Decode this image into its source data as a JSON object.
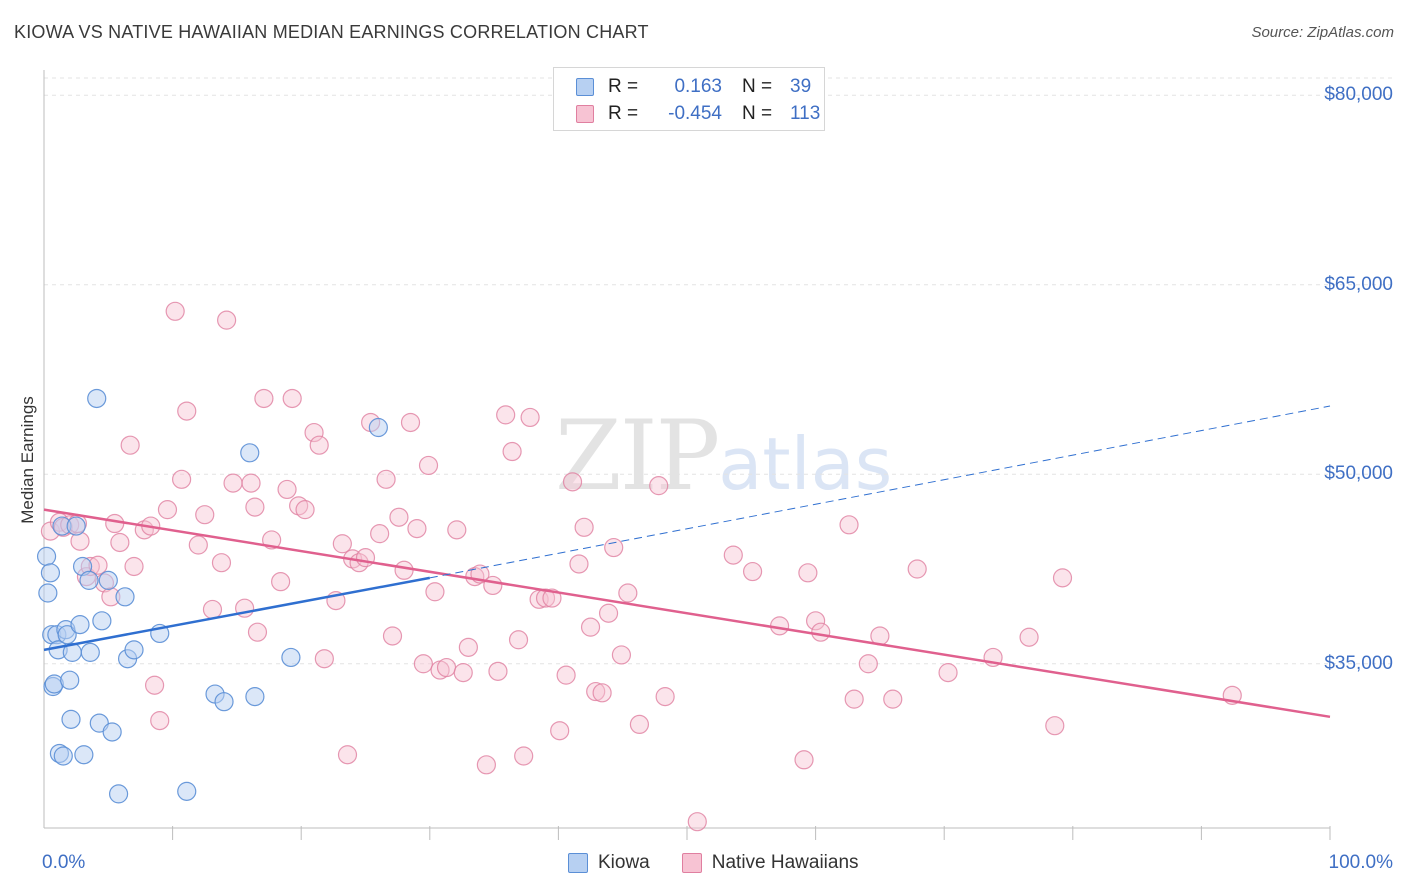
{
  "header": {
    "title": "KIOWA VS NATIVE HAWAIIAN MEDIAN EARNINGS CORRELATION CHART",
    "source": "Source: ZipAtlas.com"
  },
  "watermark": {
    "part1": "ZIP",
    "part2": "atlas"
  },
  "legend": {
    "rows": [
      {
        "r_label": "R =",
        "r_value": "0.163",
        "n_label": "N =",
        "n_value": "39"
      },
      {
        "r_label": "R =",
        "r_value": "-0.454",
        "n_label": "N =",
        "n_value": "113"
      }
    ]
  },
  "colors": {
    "kiowa_fill": "#b7d0f2",
    "kiowa_stroke": "#5b8fd6",
    "kiowa_line": "#2f6fd0",
    "hawaiian_fill": "#f7c3d3",
    "hawaiian_stroke": "#e07fa0",
    "hawaiian_line": "#e0608e",
    "grid": "#e3e3e3",
    "tick_text": "#3f6fc4"
  },
  "chart_data": {
    "type": "scatter",
    "title": "KIOWA VS NATIVE HAWAIIAN MEDIAN EARNINGS CORRELATION CHART",
    "xlabel": "",
    "ylabel": "Median Earnings",
    "xlim": [
      0,
      100
    ],
    "ylim": [
      22000,
      82000
    ],
    "x_tick_labels": [
      "0.0%",
      "100.0%"
    ],
    "y_ticks": [
      {
        "value": 80000,
        "label": "$80,000"
      },
      {
        "value": 65000,
        "label": "$65,000"
      },
      {
        "value": 50000,
        "label": "$50,000"
      },
      {
        "value": 35000,
        "label": "$35,000"
      }
    ],
    "grid": true,
    "legend_position": "top-center",
    "series": [
      {
        "name": "Kiowa",
        "r": 0.163,
        "n": 39,
        "trend": {
          "x0": 0,
          "y0": 36100,
          "x1": 30,
          "y1": 41800,
          "dashed_to_x": 100,
          "dashed_to_y": 55400
        },
        "points": [
          [
            0.2,
            43500
          ],
          [
            0.3,
            40600
          ],
          [
            0.5,
            42200
          ],
          [
            0.6,
            37300
          ],
          [
            0.7,
            33200
          ],
          [
            0.8,
            33400
          ],
          [
            1.0,
            37300
          ],
          [
            1.1,
            36100
          ],
          [
            1.2,
            27900
          ],
          [
            1.4,
            45900
          ],
          [
            1.5,
            27700
          ],
          [
            1.7,
            37700
          ],
          [
            1.8,
            37300
          ],
          [
            2.0,
            33700
          ],
          [
            2.1,
            30600
          ],
          [
            2.2,
            35900
          ],
          [
            2.5,
            45900
          ],
          [
            2.8,
            38100
          ],
          [
            3.0,
            42700
          ],
          [
            3.1,
            27800
          ],
          [
            3.5,
            41600
          ],
          [
            3.6,
            35900
          ],
          [
            4.1,
            56000
          ],
          [
            4.3,
            30300
          ],
          [
            4.5,
            38400
          ],
          [
            5.0,
            41600
          ],
          [
            5.3,
            29600
          ],
          [
            5.8,
            24700
          ],
          [
            6.3,
            40300
          ],
          [
            6.5,
            35400
          ],
          [
            7.0,
            36100
          ],
          [
            9.0,
            37400
          ],
          [
            11.1,
            24900
          ],
          [
            13.3,
            32600
          ],
          [
            14.0,
            32000
          ],
          [
            16.0,
            51700
          ],
          [
            16.4,
            32400
          ],
          [
            19.2,
            35500
          ],
          [
            26.0,
            53700
          ]
        ]
      },
      {
        "name": "Native Hawaiians",
        "r": -0.454,
        "n": 113,
        "trend": {
          "x0": 0,
          "y0": 47200,
          "x1": 100,
          "y1": 30800
        },
        "points": [
          [
            0.5,
            45500
          ],
          [
            1.2,
            46200
          ],
          [
            1.5,
            45800
          ],
          [
            2.0,
            46000
          ],
          [
            2.6,
            46100
          ],
          [
            2.8,
            44700
          ],
          [
            3.3,
            41900
          ],
          [
            3.6,
            42700
          ],
          [
            4.2,
            42800
          ],
          [
            4.7,
            41400
          ],
          [
            5.2,
            40300
          ],
          [
            5.5,
            46100
          ],
          [
            5.9,
            44600
          ],
          [
            6.7,
            52300
          ],
          [
            7.0,
            42700
          ],
          [
            7.8,
            45600
          ],
          [
            8.3,
            45900
          ],
          [
            8.6,
            33300
          ],
          [
            9.0,
            30500
          ],
          [
            9.6,
            47200
          ],
          [
            10.2,
            62900
          ],
          [
            10.7,
            49600
          ],
          [
            11.1,
            55000
          ],
          [
            12.0,
            44400
          ],
          [
            12.5,
            46800
          ],
          [
            13.1,
            39300
          ],
          [
            13.8,
            43000
          ],
          [
            14.2,
            62200
          ],
          [
            14.7,
            49300
          ],
          [
            15.6,
            39400
          ],
          [
            16.1,
            49300
          ],
          [
            16.4,
            47400
          ],
          [
            16.6,
            37500
          ],
          [
            17.1,
            56000
          ],
          [
            17.7,
            44800
          ],
          [
            18.4,
            41500
          ],
          [
            18.9,
            48800
          ],
          [
            19.3,
            56000
          ],
          [
            19.8,
            47500
          ],
          [
            20.3,
            47200
          ],
          [
            21.0,
            53300
          ],
          [
            21.4,
            52300
          ],
          [
            21.8,
            35400
          ],
          [
            22.7,
            40000
          ],
          [
            23.2,
            44500
          ],
          [
            23.6,
            27800
          ],
          [
            24.0,
            43300
          ],
          [
            24.5,
            43000
          ],
          [
            25.0,
            43400
          ],
          [
            25.4,
            54100
          ],
          [
            26.1,
            45300
          ],
          [
            26.6,
            49600
          ],
          [
            27.1,
            37200
          ],
          [
            27.6,
            46600
          ],
          [
            28.0,
            42400
          ],
          [
            28.5,
            54100
          ],
          [
            29.0,
            45700
          ],
          [
            29.5,
            35000
          ],
          [
            29.9,
            50700
          ],
          [
            30.4,
            40700
          ],
          [
            30.8,
            34500
          ],
          [
            31.3,
            34700
          ],
          [
            32.1,
            45600
          ],
          [
            32.6,
            34300
          ],
          [
            33.0,
            36300
          ],
          [
            33.5,
            41900
          ],
          [
            33.9,
            42100
          ],
          [
            34.4,
            27000
          ],
          [
            34.9,
            41200
          ],
          [
            35.3,
            34400
          ],
          [
            35.9,
            54700
          ],
          [
            36.4,
            51800
          ],
          [
            36.9,
            36900
          ],
          [
            37.3,
            27700
          ],
          [
            37.8,
            54500
          ],
          [
            38.5,
            40100
          ],
          [
            39.0,
            40200
          ],
          [
            39.5,
            40200
          ],
          [
            40.1,
            29700
          ],
          [
            40.6,
            34100
          ],
          [
            41.1,
            49400
          ],
          [
            41.6,
            42900
          ],
          [
            42.0,
            45800
          ],
          [
            42.5,
            37900
          ],
          [
            42.9,
            32800
          ],
          [
            43.4,
            32700
          ],
          [
            43.9,
            39000
          ],
          [
            44.3,
            44200
          ],
          [
            44.9,
            35700
          ],
          [
            45.4,
            40600
          ],
          [
            46.3,
            30200
          ],
          [
            47.8,
            49100
          ],
          [
            48.3,
            32400
          ],
          [
            50.8,
            22500
          ],
          [
            53.6,
            43600
          ],
          [
            55.1,
            42300
          ],
          [
            57.2,
            38000
          ],
          [
            59.1,
            27400
          ],
          [
            59.4,
            42200
          ],
          [
            60.0,
            38400
          ],
          [
            60.4,
            37500
          ],
          [
            62.6,
            46000
          ],
          [
            63.0,
            32200
          ],
          [
            64.1,
            35000
          ],
          [
            65.0,
            37200
          ],
          [
            66.0,
            32200
          ],
          [
            67.9,
            42500
          ],
          [
            70.3,
            34300
          ],
          [
            73.8,
            35500
          ],
          [
            76.6,
            37100
          ],
          [
            78.6,
            30100
          ],
          [
            79.2,
            41800
          ],
          [
            92.4,
            32500
          ]
        ]
      }
    ]
  },
  "bottom_legend": {
    "items": [
      "Kiowa",
      "Native Hawaiians"
    ]
  }
}
